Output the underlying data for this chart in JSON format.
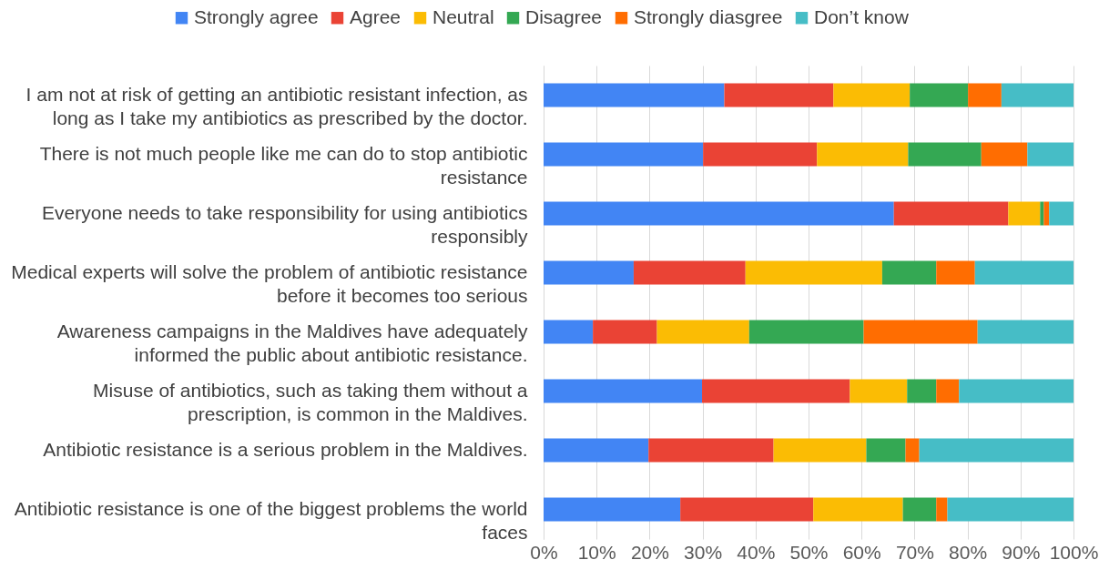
{
  "chart_data": {
    "type": "bar",
    "orientation": "horizontal",
    "stacked": true,
    "categories": [
      "I am not at risk of getting an antibiotic resistant infection, as long as I take my antibiotics as prescribed by the doctor.",
      "There is not much people like me can do to stop antibiotic resistance",
      "Everyone needs to take responsibility for using antibiotics responsibly",
      "Medical experts will solve the problem of antibiotic resistance before it becomes too serious",
      "Awareness campaigns in the Maldives have adequately informed the public about antibiotic resistance.",
      "Misuse of antibiotics, such as taking them without a prescription, is common in the Maldives.",
      "Antibiotic resistance is a serious problem in the Maldives.",
      "Antibiotic resistance is one of the biggest problems the world faces"
    ],
    "series": [
      {
        "name": "Strongly agree",
        "color": "#4285f4",
        "values": [
          34.1,
          30.1,
          66.1,
          17.0,
          9.3,
          29.9,
          19.8,
          25.8
        ]
      },
      {
        "name": "Agree",
        "color": "#ea4335",
        "values": [
          20.6,
          21.5,
          21.6,
          21.1,
          12.1,
          27.9,
          23.6,
          25.1
        ]
      },
      {
        "name": "Neutral",
        "color": "#fbbc04",
        "values": [
          14.4,
          17.2,
          6.0,
          25.8,
          17.4,
          10.8,
          17.5,
          16.9
        ]
      },
      {
        "name": "Disagree",
        "color": "#34a853",
        "values": [
          11.0,
          13.8,
          0.7,
          10.2,
          21.6,
          5.5,
          7.4,
          6.3
        ]
      },
      {
        "name": "Strongly diasgree",
        "color": "#ff6d01",
        "values": [
          6.3,
          8.7,
          1.0,
          7.3,
          21.5,
          4.3,
          2.6,
          2.1
        ]
      },
      {
        "name": "Don’t know",
        "color": "#46bdc6",
        "values": [
          13.6,
          8.7,
          4.6,
          18.6,
          18.1,
          21.6,
          29.1,
          23.8
        ]
      }
    ],
    "xlim": [
      0,
      100
    ],
    "xticks": [
      {
        "value": 0,
        "label": "0%"
      },
      {
        "value": 10,
        "label": "10%"
      },
      {
        "value": 20,
        "label": "20%"
      },
      {
        "value": 30,
        "label": "30%"
      },
      {
        "value": 40,
        "label": "40%"
      },
      {
        "value": 50,
        "label": "50%"
      },
      {
        "value": 60,
        "label": "60%"
      },
      {
        "value": 70,
        "label": "70%"
      },
      {
        "value": 80,
        "label": "80%"
      },
      {
        "value": 90,
        "label": "90%"
      },
      {
        "value": 100,
        "label": "100%"
      }
    ],
    "grid": "x",
    "legend": "top"
  }
}
